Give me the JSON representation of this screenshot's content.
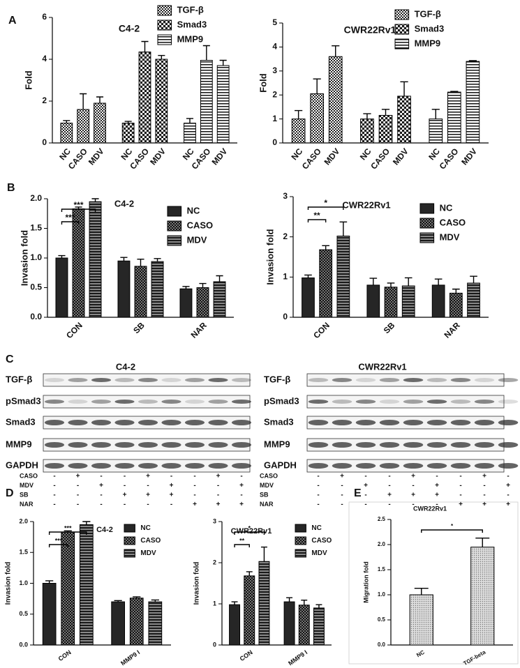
{
  "panels": [
    "A",
    "B",
    "C",
    "D",
    "E"
  ],
  "chart_data": [
    {
      "type": "bar",
      "title": "C4-2",
      "ylabel": "Fold",
      "group_by": "series",
      "legend": "top",
      "categories": [
        "NC",
        "CASO",
        "MDV"
      ],
      "series": [
        {
          "name": "TGF-β",
          "color": "#000000",
          "pattern": "checker-small",
          "values": [
            0.95,
            1.6,
            1.9
          ],
          "errors": [
            0.12,
            0.75,
            0.3
          ]
        },
        {
          "name": "Smad3",
          "color": "#000000",
          "pattern": "checker-large",
          "values": [
            0.95,
            4.35,
            4.0
          ],
          "errors": [
            0.08,
            0.5,
            0.18
          ]
        },
        {
          "name": "MMP9",
          "color": "#000000",
          "pattern": "stripes",
          "values": [
            0.95,
            3.95,
            3.7
          ],
          "errors": [
            0.22,
            0.7,
            0.25
          ]
        }
      ],
      "ylim": [
        0,
        6
      ],
      "yticks": [
        0,
        2,
        4,
        6
      ]
    },
    {
      "type": "bar",
      "title": "CWR22Rv1",
      "ylabel": "Fold",
      "group_by": "series",
      "legend": "top",
      "categories": [
        "NC",
        "CASO",
        "MDV"
      ],
      "series": [
        {
          "name": "TGF-β",
          "color": "#000000",
          "pattern": "checker-small",
          "values": [
            1.0,
            2.05,
            3.6
          ],
          "errors": [
            0.35,
            0.62,
            0.45
          ]
        },
        {
          "name": "Smad3",
          "color": "#000000",
          "pattern": "checker-large",
          "values": [
            1.0,
            1.15,
            1.95
          ],
          "errors": [
            0.22,
            0.25,
            0.6
          ]
        },
        {
          "name": "MMP9",
          "color": "#000000",
          "pattern": "stripes",
          "values": [
            1.0,
            2.12,
            3.4
          ],
          "errors": [
            0.4,
            0.03,
            0.03
          ]
        }
      ],
      "ylim": [
        0,
        5
      ],
      "yticks": [
        0,
        1,
        2,
        3,
        4,
        5
      ]
    },
    {
      "type": "bar",
      "title": "C4-2",
      "ylabel": "Invasion fold",
      "group_by": "category",
      "legend": "upper right",
      "categories": [
        "CON",
        "SB",
        "NAR"
      ],
      "series": [
        {
          "name": "NC",
          "color": "#000000",
          "pattern": "solid",
          "values": [
            1.0,
            0.95,
            0.48
          ],
          "errors": [
            0.04,
            0.06,
            0.04
          ]
        },
        {
          "name": "CASO",
          "color": "#000000",
          "pattern": "checker-dark",
          "values": [
            1.83,
            0.86,
            0.5
          ],
          "errors": [
            0.03,
            0.12,
            0.07
          ]
        },
        {
          "name": "MDV",
          "color": "#000000",
          "pattern": "stripes-dark",
          "values": [
            1.95,
            0.94,
            0.6
          ],
          "errors": [
            0.05,
            0.05,
            0.1
          ]
        }
      ],
      "ylim": [
        0,
        2
      ],
      "yticks": [
        {
          "value": 0,
          "label": "0.0"
        },
        0.5,
        {
          "value": 1,
          "label": "1.0"
        },
        1.5,
        {
          "value": 2,
          "label": "2.0"
        }
      ],
      "annotations": [
        "***",
        "***"
      ]
    },
    {
      "type": "bar",
      "title": "CWR22Rv1",
      "ylabel": "Invasion fold",
      "group_by": "category",
      "legend": "upper right",
      "categories": [
        "CON",
        "SB",
        "NAR"
      ],
      "series": [
        {
          "name": "NC",
          "color": "#000000",
          "pattern": "solid",
          "values": [
            0.98,
            0.8,
            0.8
          ],
          "errors": [
            0.07,
            0.17,
            0.15
          ]
        },
        {
          "name": "CASO",
          "color": "#000000",
          "pattern": "checker-dark",
          "values": [
            1.68,
            0.75,
            0.6
          ],
          "errors": [
            0.1,
            0.1,
            0.1
          ]
        },
        {
          "name": "MDV",
          "color": "#000000",
          "pattern": "stripes-dark",
          "values": [
            2.02,
            0.78,
            0.85
          ],
          "errors": [
            0.35,
            0.2,
            0.17
          ]
        }
      ],
      "ylim": [
        0,
        3
      ],
      "yticks": [
        0,
        1,
        2,
        3
      ],
      "annotations": [
        "**",
        "*"
      ]
    },
    {
      "type": "bar",
      "title": "C4-2",
      "ylabel": "Invasion fold",
      "group_by": "category",
      "legend": "upper right",
      "categories": [
        "CON",
        "MMP9 I"
      ],
      "series": [
        {
          "name": "NC",
          "color": "#000000",
          "pattern": "solid",
          "values": [
            1.0,
            0.7
          ],
          "errors": [
            0.04,
            0.02
          ]
        },
        {
          "name": "CASO",
          "color": "#000000",
          "pattern": "checker-dark",
          "values": [
            1.83,
            0.76
          ],
          "errors": [
            0.02,
            0.02
          ]
        },
        {
          "name": "MDV",
          "color": "#000000",
          "pattern": "stripes-dark",
          "values": [
            1.95,
            0.7
          ],
          "errors": [
            0.05,
            0.03
          ]
        }
      ],
      "ylim": [
        0,
        2
      ],
      "yticks": [
        {
          "value": 0,
          "label": "0.0"
        },
        0.5,
        {
          "value": 1,
          "label": "1.0"
        },
        1.5,
        {
          "value": 2,
          "label": "2.0"
        }
      ],
      "annotations": [
        "***",
        "***"
      ]
    },
    {
      "type": "bar",
      "title": "CWR22Rv1",
      "ylabel": "Invasion fold",
      "group_by": "category",
      "legend": "upper right",
      "categories": [
        "CON",
        "MMP9 I"
      ],
      "series": [
        {
          "name": "NC",
          "color": "#000000",
          "pattern": "solid",
          "values": [
            0.98,
            1.05
          ],
          "errors": [
            0.07,
            0.1
          ]
        },
        {
          "name": "CASO",
          "color": "#000000",
          "pattern": "checker-dark",
          "values": [
            1.68,
            0.97
          ],
          "errors": [
            0.1,
            0.12
          ]
        },
        {
          "name": "MDV",
          "color": "#000000",
          "pattern": "stripes-dark",
          "values": [
            2.03,
            0.9
          ],
          "errors": [
            0.35,
            0.08
          ]
        }
      ],
      "ylim": [
        0,
        3
      ],
      "yticks": [
        0,
        1,
        2,
        3
      ],
      "annotations": [
        "**",
        "*"
      ]
    },
    {
      "type": "bar",
      "title": "CWR22Rv1",
      "ylabel": "Migration fold",
      "group_by": "category",
      "categories": [
        "NC",
        "TGF-beta"
      ],
      "series": [
        {
          "color": "#000000",
          "pattern": "dots",
          "values": [
            1.0,
            1.95
          ],
          "errors": [
            0.13,
            0.18
          ]
        }
      ],
      "ylim": [
        0,
        2.5
      ],
      "yticks": [
        {
          "value": 0,
          "label": "0.0"
        },
        0.5,
        {
          "value": 1,
          "label": "1.0"
        },
        1.5,
        {
          "value": 2,
          "label": "2.0"
        },
        2.5
      ],
      "annotations": [
        "*"
      ]
    }
  ],
  "blots": [
    {
      "title": "C4-2",
      "rows": [
        "TGF-β",
        "pSmad3",
        "Smad3",
        "MMP9",
        "GAPDH"
      ],
      "treatments": [
        {
          "name": "CASO",
          "marks": [
            "-",
            "+",
            "-",
            "-",
            "+",
            "-",
            "-",
            "+",
            "-"
          ]
        },
        {
          "name": "MDV",
          "marks": [
            "-",
            "-",
            "+",
            "-",
            "-",
            "+",
            "-",
            "-",
            "+"
          ]
        },
        {
          "name": "SB",
          "marks": [
            "-",
            "-",
            "-",
            "+",
            "+",
            "+",
            "-",
            "-",
            "-"
          ]
        },
        {
          "name": "NAR",
          "marks": [
            "-",
            "-",
            "-",
            "-",
            "-",
            "-",
            "+",
            "+",
            "+"
          ]
        }
      ]
    },
    {
      "title": "CWR22Rv1",
      "rows": [
        "TGF-β",
        "pSmad3",
        "Smad3",
        "MMP9",
        "GAPDH"
      ],
      "treatments": [
        {
          "name": "CASO",
          "marks": [
            "-",
            "+",
            "-",
            "-",
            "+",
            "-",
            "-",
            "+",
            "-"
          ]
        },
        {
          "name": "MDV",
          "marks": [
            "-",
            "-",
            "+",
            "-",
            "-",
            "+",
            "-",
            "-",
            "+"
          ]
        },
        {
          "name": "SB",
          "marks": [
            "-",
            "-",
            "-",
            "+",
            "+",
            "+",
            "-",
            "-",
            "-"
          ]
        },
        {
          "name": "NAR",
          "marks": [
            "-",
            "-",
            "-",
            "-",
            "-",
            "-",
            "+",
            "+",
            "+"
          ]
        }
      ]
    }
  ]
}
